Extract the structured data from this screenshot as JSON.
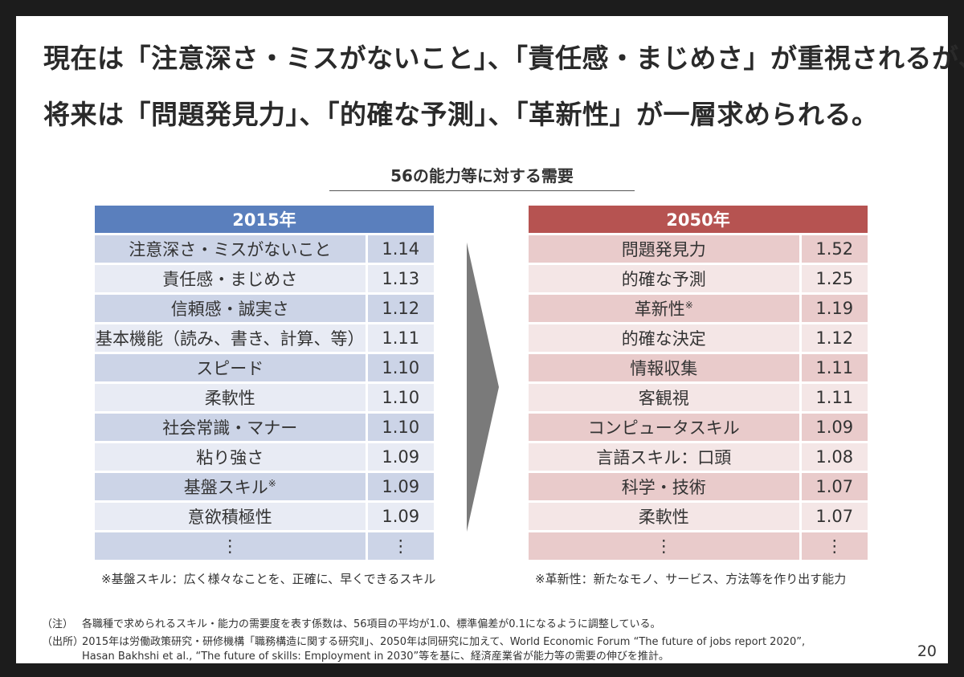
{
  "headline": {
    "line1": "現在は「注意深さ・ミスがないこと」、「責任感・まじめさ」が重視されるが、",
    "line2": "将来は「問題発見力」、「的確な予測」、「革新性」が一層求められる。"
  },
  "subtitle": "56の能力等に対する需要",
  "left_table": {
    "header": "2015年",
    "rows": [
      {
        "label": "注意深さ・ミスがないこと",
        "mark": "",
        "value": "1.14"
      },
      {
        "label": "責任感・まじめさ",
        "mark": "",
        "value": "1.13"
      },
      {
        "label": "信頼感・誠実さ",
        "mark": "",
        "value": "1.12"
      },
      {
        "label": "基本機能（読み、書き、計算、等）",
        "mark": "",
        "value": "1.11"
      },
      {
        "label": "スピード",
        "mark": "",
        "value": "1.10"
      },
      {
        "label": "柔軟性",
        "mark": "",
        "value": "1.10"
      },
      {
        "label": "社会常識・マナー",
        "mark": "",
        "value": "1.10"
      },
      {
        "label": "粘り強さ",
        "mark": "",
        "value": "1.09"
      },
      {
        "label": "基盤スキル",
        "mark": "※",
        "value": "1.09"
      },
      {
        "label": "意欲積極性",
        "mark": "",
        "value": "1.09"
      },
      {
        "label": "⋮",
        "mark": "",
        "value": "⋮"
      }
    ],
    "note": "※基盤スキル：広く様々なことを、正確に、早くできるスキル"
  },
  "right_table": {
    "header": "2050年",
    "rows": [
      {
        "label": "問題発見力",
        "mark": "",
        "value": "1.52"
      },
      {
        "label": "的確な予測",
        "mark": "",
        "value": "1.25"
      },
      {
        "label": "革新性",
        "mark": "※",
        "value": "1.19"
      },
      {
        "label": "的確な決定",
        "mark": "",
        "value": "1.12"
      },
      {
        "label": "情報収集",
        "mark": "",
        "value": "1.11"
      },
      {
        "label": "客観視",
        "mark": "",
        "value": "1.11"
      },
      {
        "label": "コンピュータスキル",
        "mark": "",
        "value": "1.09"
      },
      {
        "label": "言語スキル：口頭",
        "mark": "",
        "value": "1.08"
      },
      {
        "label": "科学・技術",
        "mark": "",
        "value": "1.07"
      },
      {
        "label": "柔軟性",
        "mark": "",
        "value": "1.07"
      },
      {
        "label": "⋮",
        "mark": "",
        "value": "⋮"
      }
    ],
    "note": "※革新性：新たなモノ、サービス、方法等を作り出す能力"
  },
  "footnotes": {
    "note_label": "（注）",
    "note_text": "各職種で求められるスキル・能力の需要度を表す係数は、56項目の平均が1.0、標準偏差が0.1になるように調整している。",
    "source_label": "（出所）",
    "source_text1": "2015年は労働政策研究・研修機構「職務構造に関する研究Ⅱ」、2050年は同研究に加えて、World Economic Forum “The future of jobs report 2020”,",
    "source_text2": "Hasan Bakhshi et al., “The future of skills: Employment in 2030”等を基に、経済産業省が能力等の需要の伸びを推計。"
  },
  "page_number": "20",
  "colors": {
    "left_header": "#5a7fbd",
    "right_header": "#b65351",
    "arrow": "#7a7a7a"
  }
}
